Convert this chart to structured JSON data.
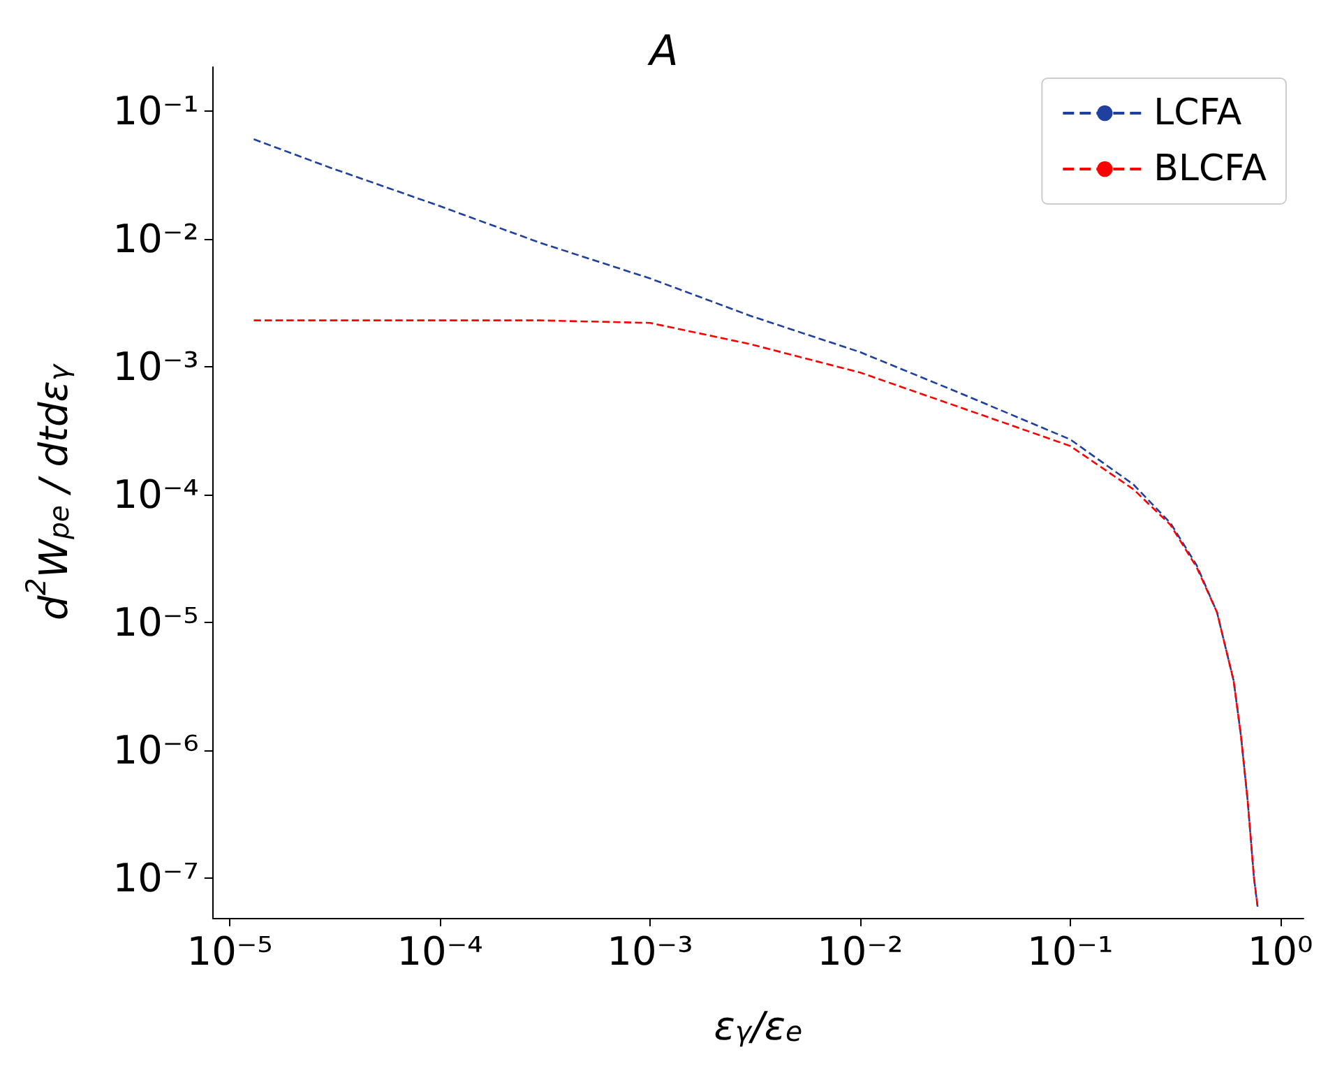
{
  "chart_data": {
    "type": "line",
    "title": "A",
    "xlabel": "ε$_{γ}$/ε$_{e}$",
    "ylabel": "d$^{2}$W$_{pe}$ / dtdε$_{γ}$",
    "log": "xy",
    "grid": false,
    "legend": "top right",
    "line_style": "dashed",
    "marker": "none",
    "xlim": [
      8.3e-06,
      1.29
    ],
    "ylim": [
      4.9e-08,
      0.22
    ],
    "xticks": [
      {
        "value": 1e-05,
        "label": "10⁻⁵"
      },
      {
        "value": 0.0001,
        "label": "10⁻⁴"
      },
      {
        "value": 0.001,
        "label": "10⁻³"
      },
      {
        "value": 0.01,
        "label": "10⁻²"
      },
      {
        "value": 0.1,
        "label": "10⁻¹"
      },
      {
        "value": 1,
        "label": "10⁰"
      }
    ],
    "yticks": [
      {
        "value": 1e-07,
        "label": "10⁻⁷"
      },
      {
        "value": 1e-06,
        "label": "10⁻⁶"
      },
      {
        "value": 1e-05,
        "label": "10⁻⁵"
      },
      {
        "value": 0.0001,
        "label": "10⁻⁴"
      },
      {
        "value": 0.001,
        "label": "10⁻³"
      },
      {
        "value": 0.01,
        "label": "10⁻²"
      },
      {
        "value": 0.1,
        "label": "10⁻¹"
      }
    ],
    "x": [
      1.3e-05,
      3e-05,
      0.0001,
      0.0003,
      0.001,
      0.003,
      0.01,
      0.03,
      0.1,
      0.2,
      0.3,
      0.4,
      0.5,
      0.6,
      0.65,
      0.7,
      0.75,
      0.78
    ],
    "series": [
      {
        "name": "LCFA",
        "color": "#2040a0",
        "values": [
          0.06,
          0.036,
          0.018,
          0.0093,
          0.0049,
          0.0025,
          0.0013,
          0.00062,
          0.00027,
          0.00012,
          6e-05,
          2.8e-05,
          1.2e-05,
          3.5e-06,
          1.3e-06,
          4e-07,
          1e-07,
          6e-08
        ]
      },
      {
        "name": "BLCFA",
        "color": "#ff0000",
        "values": [
          0.0023,
          0.0023,
          0.0023,
          0.0023,
          0.0022,
          0.0015,
          0.0009,
          0.00048,
          0.00024,
          0.00011,
          5.8e-05,
          2.7e-05,
          1.2e-05,
          3.5e-06,
          1.3e-06,
          4e-07,
          1e-07,
          6e-08
        ]
      }
    ]
  }
}
